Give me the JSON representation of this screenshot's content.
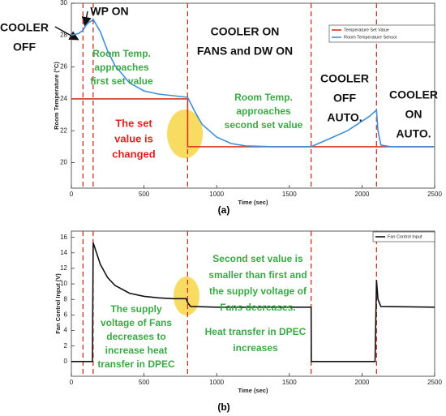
{
  "chart_data": [
    {
      "type": "line",
      "xlabel": "Time (sec)",
      "ylabel": "Room Temperature (°C)",
      "caption": "(a)",
      "xlim": [
        0,
        2500
      ],
      "ylim": [
        18.4,
        30
      ],
      "xticks": [
        0,
        500,
        1000,
        1500,
        2000,
        2500
      ],
      "yticks": [
        20,
        22,
        24,
        26,
        28,
        30
      ],
      "legend": "upper right",
      "vlines": [
        80,
        150,
        800,
        1650,
        2100
      ],
      "vline_color": "#c8321e",
      "series": [
        {
          "name": "Temperature Set Value",
          "color": "#d9361a",
          "x": [
            0,
            800,
            800,
            2500
          ],
          "values": [
            24,
            24,
            21,
            21
          ]
        },
        {
          "name": "Room Temperature Sensor",
          "color": "#3f8fd8",
          "x": [
            0,
            50,
            80,
            100,
            120,
            140,
            150,
            200,
            250,
            300,
            400,
            500,
            600,
            700,
            800,
            850,
            900,
            1000,
            1100,
            1200,
            1400,
            1650,
            1800,
            1900,
            2000,
            2050,
            2100,
            2110,
            2130,
            2200,
            2500
          ],
          "values": [
            28,
            28.1,
            28.3,
            28.6,
            28.8,
            28.9,
            29,
            28.2,
            27,
            26.1,
            25,
            24.5,
            24.3,
            24.2,
            24.1,
            23.2,
            22.4,
            21.6,
            21.2,
            21.05,
            21,
            21,
            21.6,
            22,
            22.6,
            22.9,
            23.3,
            22,
            21.1,
            21,
            21
          ]
        }
      ],
      "annotations": [
        {
          "lines": [
            "COOLER",
            "OFF"
          ],
          "color": "#111111"
        },
        {
          "lines": [
            "WP ON"
          ],
          "color": "#111111"
        },
        {
          "lines": [
            "COOLER ON",
            "FANS and DW ON"
          ],
          "color": "#111111"
        },
        {
          "lines": [
            "Room Temp.",
            "approaches",
            "first set value"
          ],
          "color": "#3aa845"
        },
        {
          "lines": [
            "Room Temp.",
            "approaches",
            "second set value"
          ],
          "color": "#3aa845"
        },
        {
          "lines": [
            "The set",
            "value is",
            "changed"
          ],
          "color": "#e02020"
        },
        {
          "lines": [
            "COOLER",
            "OFF",
            "AUTO."
          ],
          "color": "#111111"
        },
        {
          "lines": [
            "COOLER",
            "ON",
            "AUTO."
          ],
          "color": "#111111"
        }
      ]
    },
    {
      "type": "line",
      "xlabel": "Time (sec)",
      "ylabel": "Fan Control Input (V)",
      "caption": "(b)",
      "xlim": [
        0,
        2500
      ],
      "ylim": [
        -1.9,
        16.8
      ],
      "xticks": [
        0,
        500,
        1000,
        1500,
        2000,
        2500
      ],
      "yticks": [
        0,
        2,
        4,
        6,
        8,
        10,
        12,
        14,
        16
      ],
      "legend": "upper right",
      "vlines": [
        80,
        150,
        800,
        1650,
        2100
      ],
      "vline_color": "#c8321e",
      "series": [
        {
          "name": "Fan Control Input",
          "color": "#111111",
          "x": [
            0,
            145,
            150,
            200,
            250,
            300,
            400,
            500,
            600,
            700,
            790,
            800,
            820,
            1000,
            1650,
            1651,
            2090,
            2100,
            2110,
            2130,
            2500
          ],
          "values": [
            0,
            0,
            15.3,
            12.5,
            10.8,
            9.8,
            8.8,
            8.4,
            8.2,
            8.1,
            8.1,
            7.6,
            7.1,
            7,
            7,
            0,
            0,
            10.5,
            8,
            7.1,
            7
          ]
        }
      ],
      "annotations": [
        {
          "lines": [
            "Second set value is",
            "smaller than first and",
            "the supply voltage of",
            "Fans decreases."
          ],
          "color": "#3aa845"
        },
        {
          "lines": [
            "The supply",
            "voltage of Fans",
            "decreases to",
            "increase heat",
            "transfer in DPEC"
          ],
          "color": "#3aa845"
        },
        {
          "lines": [
            "Heat transfer in DPEC",
            "increases"
          ],
          "color": "#3aa845"
        }
      ]
    }
  ]
}
